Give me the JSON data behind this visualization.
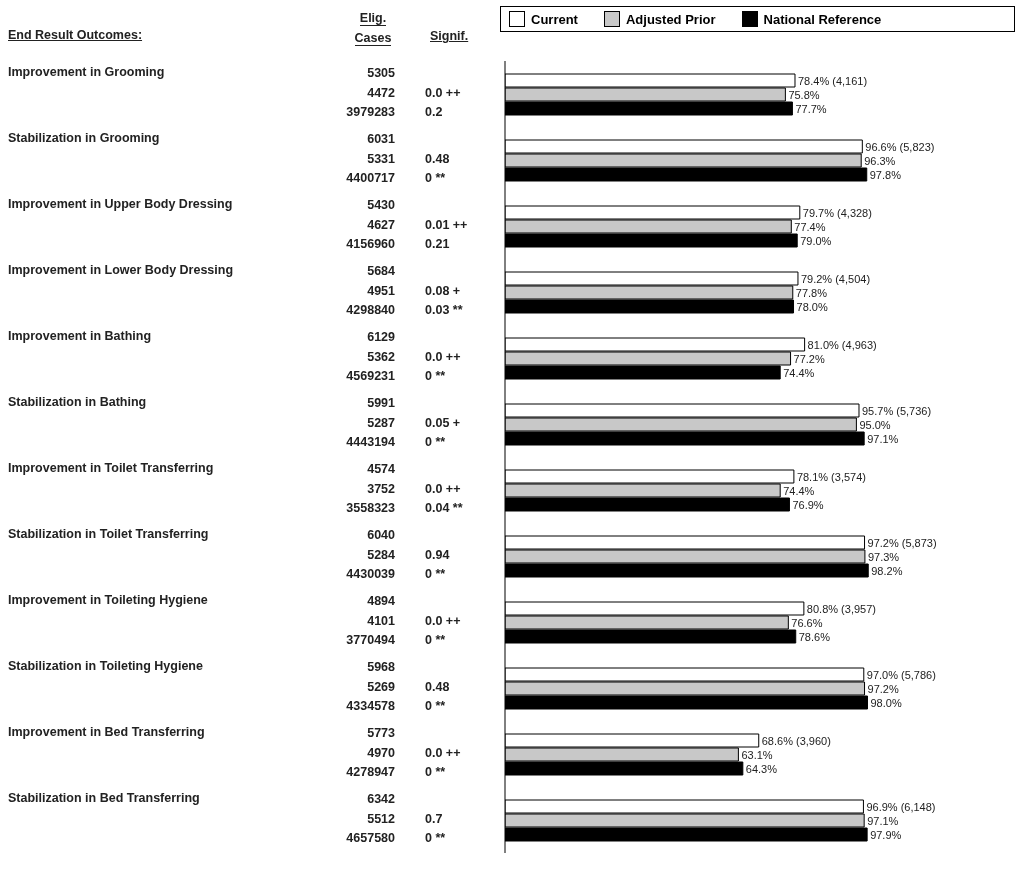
{
  "chart_data": {
    "type": "bar",
    "orientation": "horizontal",
    "ylabel": "End Result Outcomes:",
    "categories": [
      "Improvement in Grooming",
      "Stabilization in Grooming",
      "Improvement in Upper Body Dressing",
      "Improvement in Lower Body Dressing",
      "Improvement in Bathing",
      "Stabilization in Bathing",
      "Improvement in Toilet Transferring",
      "Stabilization in Toilet Transferring",
      "Improvement in Toileting Hygiene",
      "Stabilization in Toileting Hygiene",
      "Improvement in Bed Transferring",
      "Stabilization in Bed Transferring"
    ],
    "series": [
      {
        "name": "Current",
        "color": "#ffffff",
        "values": [
          78.4,
          96.6,
          79.7,
          79.2,
          81.0,
          95.7,
          78.1,
          97.2,
          80.8,
          97.0,
          68.6,
          96.9
        ],
        "value_labels": [
          "78.4% (4,161)",
          "96.6% (5,823)",
          "79.7% (4,328)",
          "79.2% (4,504)",
          "81.0% (4,963)",
          "95.7% (5,736)",
          "78.1% (3,574)",
          "97.2% (5,873)",
          "80.8% (3,957)",
          "97.0% (5,786)",
          "68.6% (3,960)",
          "96.9% (6,148)"
        ]
      },
      {
        "name": "Adjusted Prior",
        "color": "#c8c8c8",
        "values": [
          75.8,
          96.3,
          77.4,
          77.8,
          77.2,
          95.0,
          74.4,
          97.3,
          76.6,
          97.2,
          63.1,
          97.1
        ],
        "value_labels": [
          "75.8%",
          "96.3%",
          "77.4%",
          "77.8%",
          "77.2%",
          "95.0%",
          "74.4%",
          "97.3%",
          "76.6%",
          "97.2%",
          "63.1%",
          "97.1%"
        ]
      },
      {
        "name": "National Reference",
        "color": "#000000",
        "values": [
          77.7,
          97.8,
          79.0,
          78.0,
          74.4,
          97.1,
          76.9,
          98.2,
          78.6,
          98.0,
          64.3,
          97.9
        ],
        "value_labels": [
          "77.7%",
          "97.8%",
          "79.0%",
          "78.0%",
          "74.4%",
          "97.1%",
          "76.9%",
          "98.2%",
          "78.6%",
          "98.0%",
          "64.3%",
          "97.9%"
        ]
      }
    ],
    "legend": "top",
    "annotations": [
      "Elig. Cases",
      "Signif.",
      "5305",
      "4472",
      "0.0 ++",
      "3979283",
      "0.2",
      "6031",
      "5331",
      "0.48",
      "4400717",
      "0 **",
      "5430",
      "4627",
      "0.01 ++",
      "4156960",
      "0.21",
      "5684",
      "4951",
      "0.08 +",
      "4298840",
      "0.03 **",
      "6129",
      "5362",
      "0.0 ++",
      "4569231",
      "0 **",
      "5991",
      "5287",
      "0.05 +",
      "4443194",
      "0 **",
      "4574",
      "3752",
      "0.0 ++",
      "3558323",
      "0.04 **",
      "6040",
      "5284",
      "0.94",
      "4430039",
      "0 **",
      "4894",
      "4101",
      "0.0 ++",
      "3770494",
      "0 **",
      "5968",
      "5269",
      "0.48",
      "4334578",
      "0 **",
      "5773",
      "4970",
      "0.0 ++",
      "4278947",
      "0 **",
      "6342",
      "5512",
      "0.7",
      "4657580",
      "0 **"
    ]
  }
}
